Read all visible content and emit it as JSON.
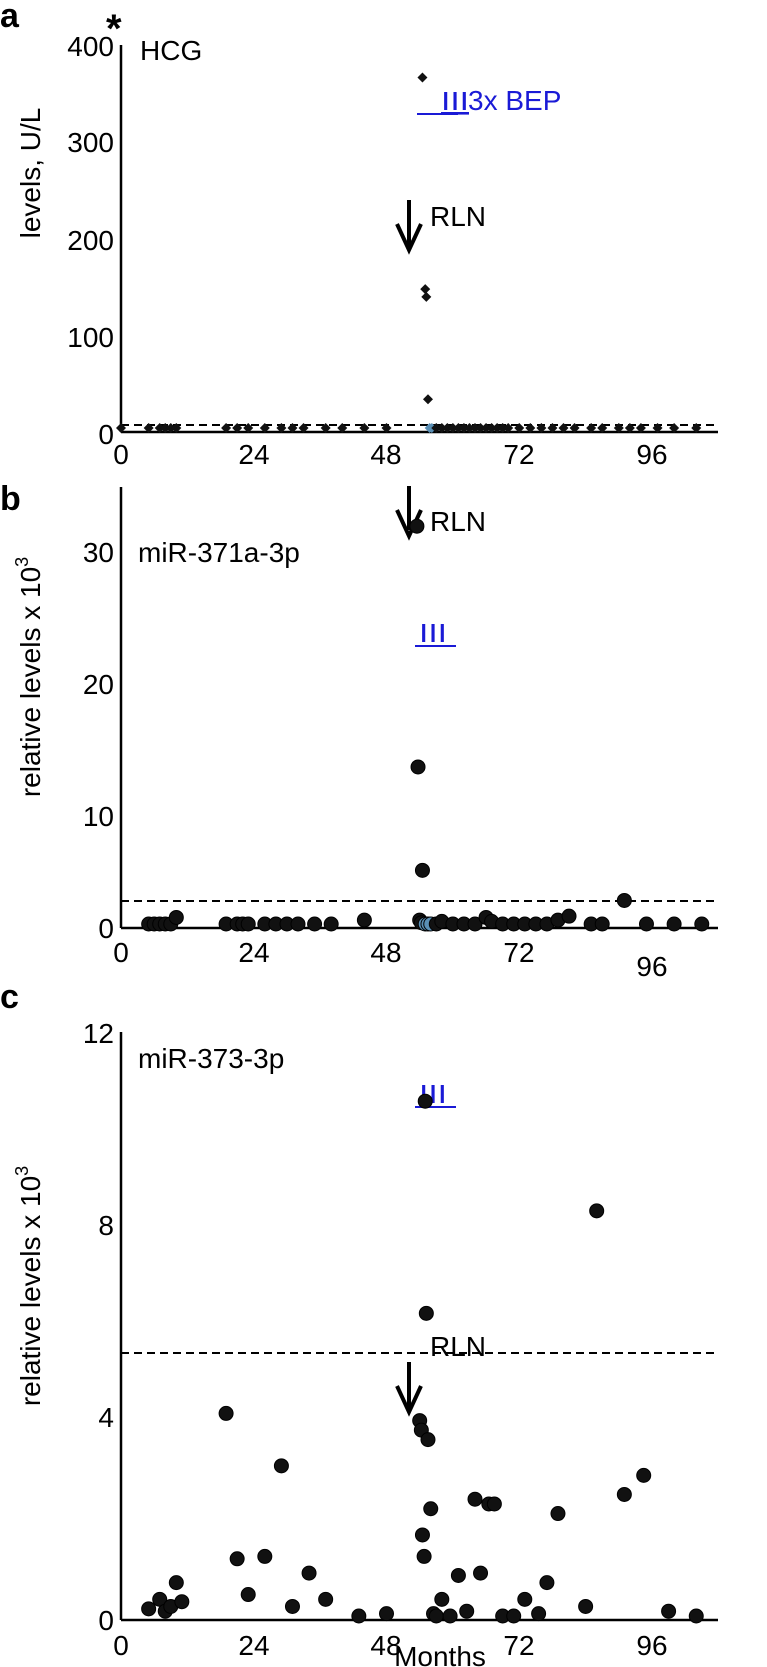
{
  "colors": {
    "marker": "#111111",
    "marker_low": "#5a8fb5",
    "treatment": "#1a1ad6",
    "axis": "#000000"
  },
  "shared_xlabel": "Months",
  "chart_data": [
    {
      "panel": "a",
      "type": "scatter",
      "marker": "diamond",
      "title": "HCG",
      "ylabel": "levels, U/L",
      "ylim": [
        0,
        400
      ],
      "yticks": [
        "0",
        "100",
        "200",
        "300",
        "400"
      ],
      "xlim": [
        0,
        108
      ],
      "xticks": [
        "0",
        "24",
        "48",
        "72",
        "96"
      ],
      "threshold": 5,
      "star": "*",
      "annotations": {
        "treatment_label": "3x BEP",
        "treatment_symbol": "III",
        "event_label": "RLN"
      },
      "points": [
        [
          0,
          0
        ],
        [
          5,
          0
        ],
        [
          7,
          0
        ],
        [
          8,
          0
        ],
        [
          9,
          0
        ],
        [
          10,
          0
        ],
        [
          19,
          0
        ],
        [
          21,
          0
        ],
        [
          23,
          0
        ],
        [
          26,
          0
        ],
        [
          29,
          0
        ],
        [
          31,
          0
        ],
        [
          33,
          0
        ],
        [
          37,
          0
        ],
        [
          40,
          0
        ],
        [
          44,
          0
        ],
        [
          48,
          0
        ],
        [
          54.5,
          366
        ],
        [
          55,
          145
        ],
        [
          55.2,
          137
        ],
        [
          55.5,
          30
        ],
        [
          55.8,
          0
        ],
        [
          56.2,
          0
        ],
        [
          57,
          0
        ],
        [
          58,
          0
        ],
        [
          59,
          0
        ],
        [
          60,
          0
        ],
        [
          61,
          0
        ],
        [
          62,
          0
        ],
        [
          63,
          0
        ],
        [
          64,
          0
        ],
        [
          65,
          0
        ],
        [
          66,
          0
        ],
        [
          67,
          0
        ],
        [
          68,
          0
        ],
        [
          69,
          0
        ],
        [
          70,
          0
        ],
        [
          72,
          0
        ],
        [
          74,
          0
        ],
        [
          76,
          0
        ],
        [
          78,
          0
        ],
        [
          80,
          0
        ],
        [
          82,
          0
        ],
        [
          85,
          0
        ],
        [
          87,
          0
        ],
        [
          90,
          0
        ],
        [
          92,
          0
        ],
        [
          94,
          0
        ],
        [
          97,
          0
        ],
        [
          100,
          0
        ],
        [
          104,
          0
        ]
      ]
    },
    {
      "panel": "b",
      "type": "scatter",
      "marker": "circle",
      "title": "miR-371a-3p",
      "ylabel": "relative levels x 10",
      "ylabel_sup": "3",
      "ylim": [
        0,
        35
      ],
      "yticks": [
        "0",
        "10",
        "20",
        "30"
      ],
      "xlim": [
        0,
        108
      ],
      "xticks": [
        "0",
        "24",
        "48",
        "72",
        "96"
      ],
      "threshold": 1.9,
      "annotations": {
        "treatment_symbol": "III",
        "event_label": "RLN"
      },
      "points": [
        [
          5,
          0
        ],
        [
          6,
          0
        ],
        [
          7,
          0
        ],
        [
          8,
          0
        ],
        [
          9,
          0
        ],
        [
          10,
          0.5
        ],
        [
          19,
          0
        ],
        [
          21,
          0
        ],
        [
          22,
          0
        ],
        [
          23,
          0
        ],
        [
          26,
          0
        ],
        [
          28,
          0
        ],
        [
          30,
          0
        ],
        [
          32,
          0
        ],
        [
          35,
          0
        ],
        [
          38,
          0
        ],
        [
          44,
          0.3
        ],
        [
          53.5,
          30.4
        ],
        [
          53.7,
          12
        ],
        [
          54.5,
          4.1
        ],
        [
          54,
          0.3
        ],
        [
          54.3,
          0.1
        ],
        [
          55,
          0
        ],
        [
          55.5,
          0
        ],
        [
          56,
          0
        ],
        [
          57,
          0
        ],
        [
          58,
          0.2
        ],
        [
          60,
          0
        ],
        [
          62,
          0
        ],
        [
          64,
          0
        ],
        [
          66,
          0.5
        ],
        [
          67,
          0.2
        ],
        [
          69,
          0
        ],
        [
          71,
          0
        ],
        [
          73,
          0
        ],
        [
          75,
          0
        ],
        [
          77,
          0
        ],
        [
          79,
          0.3
        ],
        [
          81,
          0.6
        ],
        [
          85,
          0
        ],
        [
          87,
          0
        ],
        [
          91,
          1.8
        ],
        [
          95,
          0
        ],
        [
          100,
          0
        ],
        [
          105,
          0
        ]
      ]
    },
    {
      "panel": "c",
      "type": "scatter",
      "marker": "circle",
      "title": "miR-373-3p",
      "ylabel": "relative levels  x 10",
      "ylabel_sup": "3",
      "ylim": [
        0,
        12
      ],
      "yticks": [
        "0",
        "4",
        "8",
        "12"
      ],
      "xlim": [
        0,
        108
      ],
      "xticks": [
        "0",
        "24",
        "48",
        "72",
        "96"
      ],
      "xlabel": "Months",
      "threshold": 5.4,
      "annotations": {
        "treatment_symbol": "III",
        "event_label": "RLN"
      },
      "points": [
        [
          5,
          0.15
        ],
        [
          7,
          0.35
        ],
        [
          8,
          0.1
        ],
        [
          9,
          0.2
        ],
        [
          10,
          0.7
        ],
        [
          11,
          0.3
        ],
        [
          19,
          4.25
        ],
        [
          21,
          1.2
        ],
        [
          23,
          0.45
        ],
        [
          26,
          1.25
        ],
        [
          29,
          3.15
        ],
        [
          31,
          0.2
        ],
        [
          34,
          0.9
        ],
        [
          37,
          0.35
        ],
        [
          43,
          0
        ],
        [
          48,
          0.05
        ],
        [
          54,
          4.1
        ],
        [
          54.3,
          3.9
        ],
        [
          54.5,
          1.7
        ],
        [
          54.8,
          1.25
        ],
        [
          55,
          10.8
        ],
        [
          55.2,
          6.35
        ],
        [
          55.5,
          3.7
        ],
        [
          56,
          2.25
        ],
        [
          56.5,
          0.05
        ],
        [
          57,
          0
        ],
        [
          58,
          0.35
        ],
        [
          59.5,
          0
        ],
        [
          61,
          0.85
        ],
        [
          62.5,
          0.1
        ],
        [
          64,
          2.45
        ],
        [
          65,
          0.9
        ],
        [
          66.5,
          2.35
        ],
        [
          67.5,
          2.35
        ],
        [
          69,
          0
        ],
        [
          71,
          0
        ],
        [
          73,
          0.35
        ],
        [
          75.5,
          0.05
        ],
        [
          77,
          0.7
        ],
        [
          79,
          2.15
        ],
        [
          84,
          0.2
        ],
        [
          86,
          8.5
        ],
        [
          91,
          2.55
        ],
        [
          94.5,
          2.95
        ],
        [
          99,
          0.1
        ],
        [
          104,
          0
        ]
      ]
    }
  ]
}
